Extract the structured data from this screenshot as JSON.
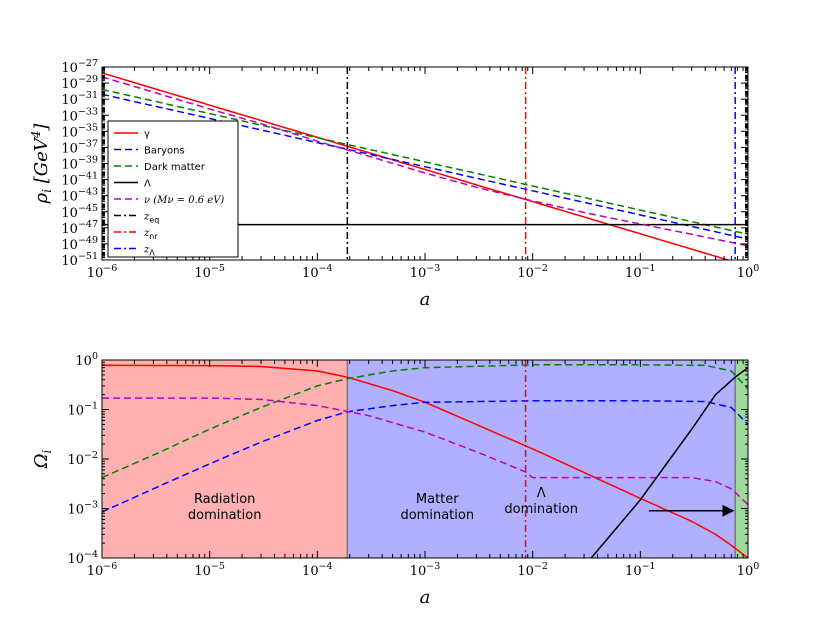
{
  "chart_data": [
    {
      "type": "line",
      "xlabel": "a",
      "ylabel": "ρ_i [GeV^4]",
      "xscale": "log",
      "yscale": "log",
      "xlim": [
        1e-06,
        1
      ],
      "ylim": [
        1e-51,
        1e-27
      ],
      "x_ticks": [
        "10^-6",
        "10^-5",
        "10^-4",
        "10^-3",
        "10^-2",
        "10^-1",
        "10^0"
      ],
      "y_ticks": [
        "10^-27",
        "10^-29",
        "10^-31",
        "10^-33",
        "10^-35",
        "10^-37",
        "10^-39",
        "10^-41",
        "10^-43",
        "10^-45",
        "10^-47",
        "10^-49",
        "10^-51"
      ],
      "legend_position": "center-left",
      "series": [
        {
          "name": "γ",
          "color": "#ff0000",
          "style": "solid",
          "x": [
            1e-06,
            1
          ],
          "y": [
            1.8e-28,
            1.8e-52
          ]
        },
        {
          "name": "Baryons",
          "color": "#0000ff",
          "style": "dashed",
          "x": [
            1e-06,
            1
          ],
          "y": [
            4e-31,
            4e-49
          ]
        },
        {
          "name": "Dark matter",
          "color": "#008000",
          "style": "dashed",
          "x": [
            1e-06,
            1
          ],
          "y": [
            1.6e-30,
            1.6e-48
          ]
        },
        {
          "name": "Λ",
          "color": "#000000",
          "style": "solid",
          "x": [
            1e-06,
            1
          ],
          "y": [
            2.5e-47,
            2.5e-47
          ]
        },
        {
          "name": "ν (M_ν = 0.6 eV)",
          "color": "#bf00bf",
          "style": "dashed",
          "x": [
            1e-06,
            1e-05,
            3e-05,
            0.0001,
            0.0003,
            0.001,
            0.003,
            0.0086,
            0.03,
            0.1,
            1
          ],
          "y": [
            6e-29,
            6e-33,
            9e-35,
            6e-37,
            8e-39,
            6.5e-41,
            1.1e-42,
            3.5e-44,
            8e-46,
            3e-47,
            6e-50
          ]
        },
        {
          "name": "z_eq",
          "color": "#000000",
          "style": "dashdot",
          "vline": 0.00019
        },
        {
          "name": "z_nr",
          "color": "#ff0000",
          "style": "dashdot",
          "vline": 0.0086
        },
        {
          "name": "z_Λ",
          "color": "#0000ff",
          "style": "dashdot",
          "vline": 0.76
        }
      ]
    },
    {
      "type": "line",
      "xlabel": "a",
      "ylabel": "Ω_i",
      "xscale": "log",
      "yscale": "log",
      "xlim": [
        1e-06,
        1
      ],
      "ylim": [
        0.0001,
        1
      ],
      "x_ticks": [
        "10^-6",
        "10^-5",
        "10^-4",
        "10^-3",
        "10^-2",
        "10^-1",
        "10^0"
      ],
      "y_ticks": [
        "10^0",
        "10^-1",
        "10^-2",
        "10^-3",
        "10^-4"
      ],
      "regions": [
        {
          "label_lines": [
            "Radiation",
            "domination"
          ],
          "x_range": [
            1e-06,
            0.00019
          ],
          "color": "#ffb0b0"
        },
        {
          "label_lines": [
            "Matter",
            "domination"
          ],
          "x_range": [
            0.00019,
            0.76
          ],
          "color": "#b0b0ff"
        },
        {
          "label_lines": [
            "Λ",
            "domination"
          ],
          "x_range": [
            0.76,
            1
          ],
          "color": "#a0d8a0"
        }
      ],
      "series": [
        {
          "name": "γ",
          "color": "#ff0000",
          "style": "solid",
          "x": [
            1e-06,
            1e-05,
            3e-05,
            0.0001,
            0.00019,
            0.0005,
            0.001,
            0.01,
            0.1,
            0.3,
            0.5,
            0.7,
            1
          ],
          "y": [
            0.78,
            0.77,
            0.74,
            0.6,
            0.45,
            0.24,
            0.14,
            0.016,
            0.0016,
            0.00055,
            0.0003,
            0.00018,
            0.0001
          ]
        },
        {
          "name": "Dark matter",
          "color": "#008000",
          "style": "dashed",
          "x": [
            1e-06,
            3e-06,
            1e-05,
            3e-05,
            0.0001,
            0.00019,
            0.0005,
            0.001,
            0.01,
            0.1,
            0.4,
            0.7,
            1
          ],
          "y": [
            0.0042,
            0.012,
            0.04,
            0.11,
            0.3,
            0.42,
            0.6,
            0.7,
            0.8,
            0.8,
            0.78,
            0.6,
            0.26
          ]
        },
        {
          "name": "Baryons",
          "color": "#0000ff",
          "style": "dashed",
          "x": [
            1e-06,
            3e-06,
            1e-05,
            3e-05,
            0.0001,
            0.00019,
            0.0005,
            0.001,
            0.01,
            0.1,
            0.4,
            0.7,
            1
          ],
          "y": [
            0.00085,
            0.0025,
            0.008,
            0.022,
            0.06,
            0.09,
            0.12,
            0.14,
            0.15,
            0.15,
            0.145,
            0.11,
            0.05
          ]
        },
        {
          "name": "ν (M_ν = 0.6 eV)",
          "color": "#bf00bf",
          "style": "dashed",
          "x": [
            1e-06,
            1e-05,
            3e-05,
            0.0001,
            0.0003,
            0.001,
            0.003,
            0.0086,
            0.01,
            0.1,
            0.3,
            0.5,
            0.7,
            1
          ],
          "y": [
            0.17,
            0.17,
            0.16,
            0.12,
            0.075,
            0.035,
            0.014,
            0.0055,
            0.0042,
            0.0042,
            0.0042,
            0.0035,
            0.0025,
            0.0012
          ]
        },
        {
          "name": "Λ",
          "color": "#000000",
          "style": "solid",
          "x": [
            0.035,
            0.1,
            0.3,
            0.5,
            0.76,
            1
          ],
          "y": [
            0.0001,
            0.0015,
            0.04,
            0.2,
            0.45,
            0.7
          ]
        },
        {
          "name": "z_nr",
          "color": "#ff0000",
          "style": "dashdot",
          "vline": 0.0086
        }
      ],
      "annotation_arrow": {
        "from": [
          0.12,
          0.0009
        ],
        "to": [
          0.76,
          0.0009
        ]
      }
    }
  ]
}
